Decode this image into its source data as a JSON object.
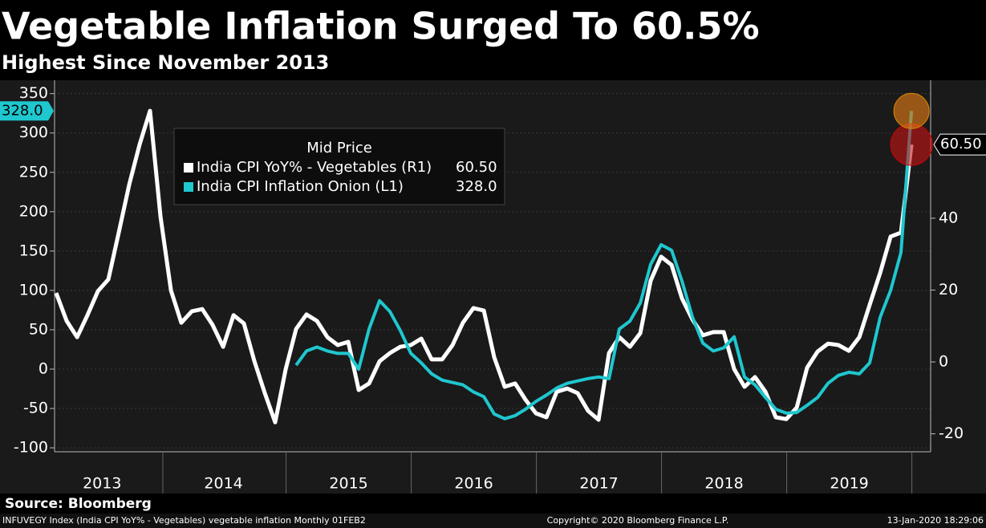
{
  "chart_data": {
    "type": "line",
    "title": "Vegetable Inflation Surged To 60.5%",
    "subtitle": "Highest Since November 2013",
    "legend_title": "Mid Price",
    "source": "Source: Bloomberg",
    "footer": {
      "left": "INFUVEGY Index (India CPI YoY% - Vegetables) vegetable inflation  Monthly 01FEB2",
      "center": "Copyright© 2020 Bloomberg Finance L.P.",
      "right": "13-Jan-2020 18:29:06"
    },
    "x": [
      2013.083,
      2013.167,
      2013.25,
      2013.333,
      2013.417,
      2013.5,
      2013.583,
      2013.667,
      2013.75,
      2013.833,
      2013.917,
      2014,
      2014.083,
      2014.167,
      2014.25,
      2014.333,
      2014.417,
      2014.5,
      2014.583,
      2014.667,
      2014.75,
      2014.833,
      2014.917,
      2015,
      2015.083,
      2015.167,
      2015.25,
      2015.333,
      2015.417,
      2015.5,
      2015.583,
      2015.667,
      2015.75,
      2015.833,
      2015.917,
      2016,
      2016.083,
      2016.167,
      2016.25,
      2016.333,
      2016.417,
      2016.5,
      2016.583,
      2016.667,
      2016.75,
      2016.833,
      2016.917,
      2017,
      2017.083,
      2017.167,
      2017.25,
      2017.333,
      2017.417,
      2017.5,
      2017.583,
      2017.667,
      2017.75,
      2017.833,
      2017.917,
      2018,
      2018.083,
      2018.167,
      2018.25,
      2018.333,
      2018.417,
      2018.5,
      2018.583,
      2018.667,
      2018.75,
      2018.833,
      2018.917,
      2019,
      2019.083,
      2019.167,
      2019.25,
      2019.333,
      2019.417,
      2019.5,
      2019.583,
      2019.667,
      2019.75,
      2019.833,
      2019.917
    ],
    "series": [
      {
        "name": "India CPI YoY% - Vegetables  (R1)",
        "color": "#ffffff",
        "axis": "y2",
        "last_label": "60.50",
        "values": [
          19.2,
          11.4,
          6.9,
          13.0,
          19.7,
          23.0,
          36.0,
          49.4,
          60.6,
          69.9,
          40.4,
          19.9,
          10.9,
          14.1,
          14.7,
          10.3,
          4.2,
          13.0,
          10.7,
          0.2,
          -8.7,
          -16.8,
          -2.0,
          9.2,
          13.2,
          11.4,
          6.9,
          4.7,
          5.6,
          -7.8,
          -6.0,
          0.2,
          2.5,
          4.2,
          4.7,
          6.5,
          0.7,
          0.7,
          4.7,
          10.9,
          15.0,
          14.3,
          1.3,
          -6.9,
          -6.0,
          -10.5,
          -14.3,
          -15.4,
          -8.3,
          -7.4,
          -8.7,
          -13.6,
          -16.1,
          2.5,
          6.9,
          4.2,
          8.0,
          22.6,
          29.3,
          27.0,
          17.7,
          11.8,
          7.4,
          8.3,
          8.3,
          -2.0,
          -6.9,
          -4.2,
          -8.3,
          -15.4,
          -15.9,
          -12.7,
          -1.6,
          2.9,
          5.1,
          4.7,
          3.1,
          6.9,
          15.9,
          24.8,
          34.9,
          36.0,
          60.5
        ]
      },
      {
        "name": "India CPI Inflation Onion  (L1)",
        "color": "#1fc7cf",
        "axis": "y",
        "last_label": "328.0",
        "values": [
          null,
          null,
          null,
          null,
          null,
          null,
          null,
          null,
          null,
          null,
          null,
          null,
          null,
          null,
          null,
          null,
          null,
          null,
          null,
          null,
          null,
          null,
          null,
          5,
          23,
          28,
          23,
          20,
          20,
          0,
          51,
          87,
          73,
          49,
          20,
          8,
          -6,
          -14,
          -17,
          -20,
          -29,
          -35,
          -57,
          -63,
          -59,
          -51,
          -41,
          -33,
          -24,
          -18,
          -15,
          -12,
          -10,
          -12,
          51,
          61,
          84,
          133,
          158,
          151,
          112,
          66,
          33,
          23,
          27,
          41,
          -10,
          -20,
          -36,
          -51,
          -56,
          -55,
          -46,
          -36,
          -18,
          -8,
          -4,
          -6,
          8,
          66,
          100,
          148,
          328
        ]
      }
    ],
    "xlim": [
      2013.07,
      2020.07
    ],
    "xticks": [
      {
        "value": 2013.45,
        "label": "2013"
      },
      {
        "value": 2014.42,
        "label": "2014"
      },
      {
        "value": 2015.42,
        "label": "2015"
      },
      {
        "value": 2016.42,
        "label": "2016"
      },
      {
        "value": 2017.42,
        "label": "2017"
      },
      {
        "value": 2018.42,
        "label": "2018"
      },
      {
        "value": 2019.42,
        "label": "2019"
      }
    ],
    "ylim": [
      -105,
      367
    ],
    "yticks": [
      -100,
      -50,
      0,
      50,
      100,
      150,
      200,
      250,
      300,
      350
    ],
    "y2lim": [
      -25,
      78.4
    ],
    "y2ticks": [
      -20,
      0,
      20,
      40
    ],
    "grid": true
  }
}
